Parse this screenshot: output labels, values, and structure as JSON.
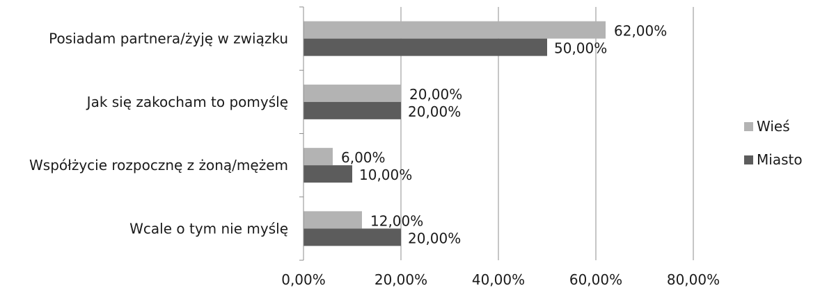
{
  "chart_data": {
    "type": "bar",
    "orientation": "horizontal",
    "categories": [
      "Posiadam partnera/żyję w związku",
      "Jak się zakocham to pomyślę",
      "Współżycie rozpocznę z żoną/mężem",
      "Wcale o tym nie myślę"
    ],
    "series": [
      {
        "name": "Wieś",
        "values": [
          62,
          20,
          6,
          12
        ],
        "labels": [
          "62,00%",
          "20,00%",
          "6,00%",
          "12,00%"
        ],
        "color": "#b3b3b3"
      },
      {
        "name": "Miasto",
        "values": [
          50,
          20,
          10,
          20
        ],
        "labels": [
          "50,00%",
          "20,00%",
          "10,00%",
          "20,00%"
        ],
        "color": "#5c5c5c"
      }
    ],
    "xlim": [
      0,
      80
    ],
    "ticks": [
      0,
      20,
      40,
      60,
      80
    ],
    "tick_labels": [
      "0,00%",
      "20,00%",
      "40,00%",
      "60,00%",
      "80,00%"
    ],
    "grid": true,
    "legend_position": "right"
  }
}
